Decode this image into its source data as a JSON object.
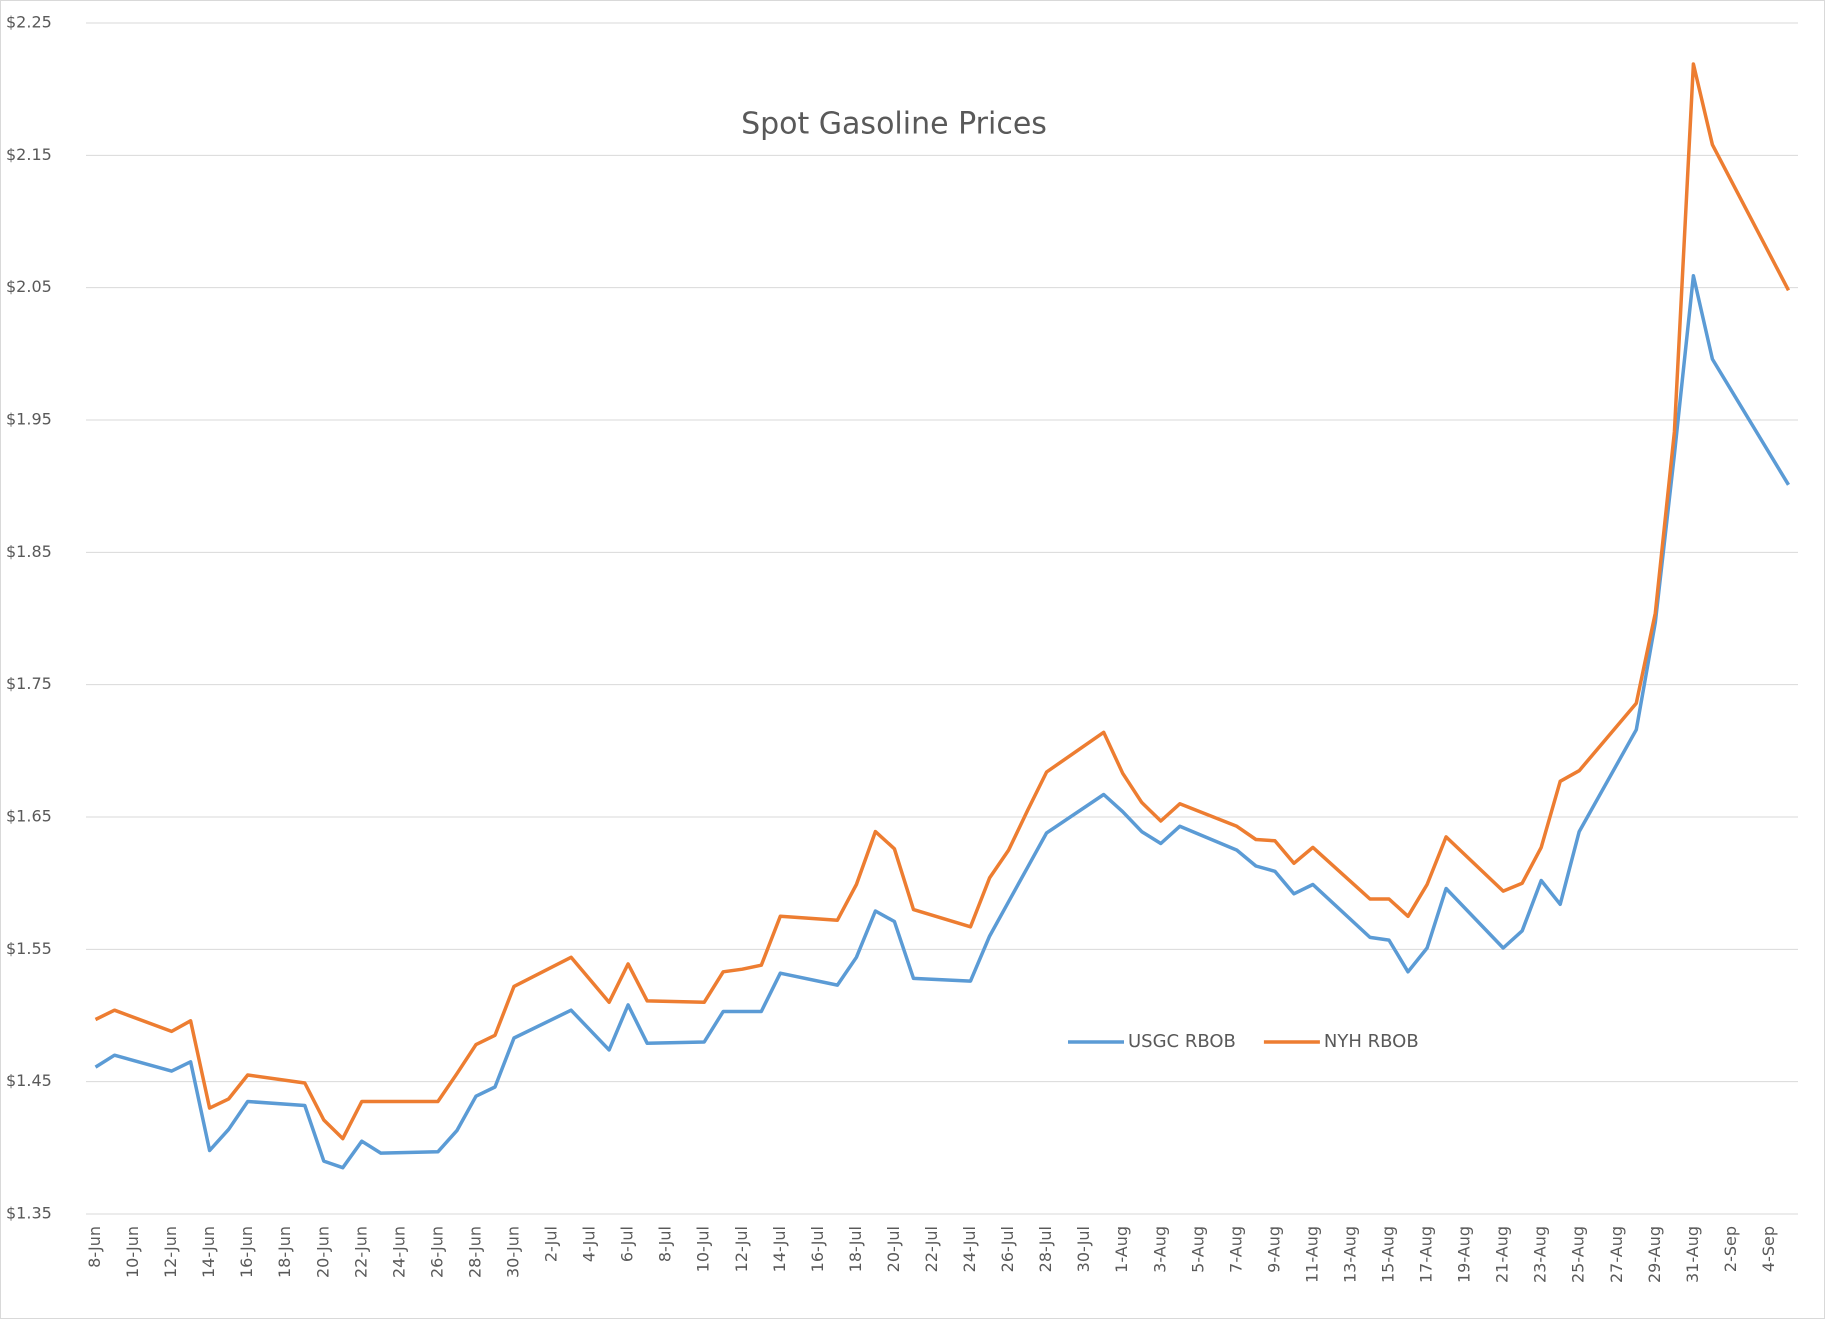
{
  "chart_data": {
    "type": "line",
    "title": "Spot Gasoline Prices",
    "x": [
      "8-Jun",
      "9-Jun",
      "12-Jun",
      "13-Jun",
      "14-Jun",
      "15-Jun",
      "16-Jun",
      "19-Jun",
      "20-Jun",
      "21-Jun",
      "22-Jun",
      "23-Jun",
      "26-Jun",
      "27-Jun",
      "28-Jun",
      "29-Jun",
      "30-Jun",
      "3-Jul",
      "5-Jul",
      "6-Jul",
      "7-Jul",
      "10-Jul",
      "11-Jul",
      "12-Jul",
      "13-Jul",
      "14-Jul",
      "17-Jul",
      "18-Jul",
      "19-Jul",
      "20-Jul",
      "21-Jul",
      "24-Jul",
      "25-Jul",
      "26-Jul",
      "27-Jul",
      "28-Jul",
      "31-Jul",
      "1-Aug",
      "2-Aug",
      "3-Aug",
      "4-Aug",
      "7-Aug",
      "8-Aug",
      "9-Aug",
      "10-Aug",
      "11-Aug",
      "14-Aug",
      "15-Aug",
      "16-Aug",
      "17-Aug",
      "18-Aug",
      "21-Aug",
      "22-Aug",
      "23-Aug",
      "24-Aug",
      "25-Aug",
      "28-Aug",
      "29-Aug",
      "30-Aug",
      "31-Aug",
      "1-Sep",
      "5-Sep"
    ],
    "series": [
      {
        "name": "USGC RBOB",
        "color": "#5b9bd5",
        "values": [
          1.461,
          1.47,
          1.458,
          1.465,
          1.398,
          1.414,
          1.435,
          1.432,
          1.39,
          1.385,
          1.405,
          1.396,
          1.397,
          1.413,
          1.439,
          1.446,
          1.483,
          1.504,
          1.474,
          1.508,
          1.479,
          1.48,
          1.503,
          1.503,
          1.503,
          1.532,
          1.523,
          1.544,
          1.579,
          1.571,
          1.528,
          1.526,
          1.56,
          1.586,
          1.612,
          1.638,
          1.667,
          1.654,
          1.639,
          1.63,
          1.643,
          1.625,
          1.613,
          1.609,
          1.592,
          1.599,
          1.559,
          1.557,
          1.533,
          1.551,
          1.596,
          1.551,
          1.564,
          1.602,
          1.584,
          1.639,
          1.716,
          1.797,
          1.924,
          2.059,
          1.996,
          1.901
        ]
      },
      {
        "name": "NYH RBOB",
        "color": "#ed7d31",
        "values": [
          1.497,
          1.504,
          1.488,
          1.496,
          1.43,
          1.437,
          1.455,
          1.449,
          1.421,
          1.407,
          1.435,
          1.435,
          1.435,
          1.456,
          1.478,
          1.485,
          1.522,
          1.544,
          1.51,
          1.539,
          1.511,
          1.51,
          1.533,
          1.535,
          1.538,
          1.575,
          1.572,
          1.599,
          1.639,
          1.626,
          1.58,
          1.567,
          1.604,
          1.625,
          1.655,
          1.684,
          1.714,
          1.683,
          1.661,
          1.647,
          1.66,
          1.643,
          1.633,
          1.632,
          1.615,
          1.627,
          1.588,
          1.588,
          1.575,
          1.599,
          1.635,
          1.594,
          1.6,
          1.627,
          1.677,
          1.685,
          1.736,
          1.804,
          1.941,
          2.219,
          2.158,
          2.048
        ]
      }
    ],
    "xlim": [
      "8-Jun",
      "5-Sep"
    ],
    "xticks": [
      "8-Jun",
      "10-Jun",
      "12-Jun",
      "14-Jun",
      "16-Jun",
      "18-Jun",
      "20-Jun",
      "22-Jun",
      "24-Jun",
      "26-Jun",
      "28-Jun",
      "30-Jun",
      "2-Jul",
      "4-Jul",
      "6-Jul",
      "8-Jul",
      "10-Jul",
      "12-Jul",
      "14-Jul",
      "16-Jul",
      "18-Jul",
      "20-Jul",
      "22-Jul",
      "24-Jul",
      "26-Jul",
      "28-Jul",
      "30-Jul",
      "1-Aug",
      "3-Aug",
      "5-Aug",
      "7-Aug",
      "9-Aug",
      "11-Aug",
      "13-Aug",
      "15-Aug",
      "17-Aug",
      "19-Aug",
      "21-Aug",
      "23-Aug",
      "25-Aug",
      "27-Aug",
      "29-Aug",
      "31-Aug",
      "2-Sep",
      "4-Sep"
    ],
    "ylim": [
      1.35,
      2.25
    ],
    "yticks": [
      {
        "value": 1.35,
        "label": "$1.35"
      },
      {
        "value": 1.45,
        "label": "$1.45"
      },
      {
        "value": 1.55,
        "label": "$1.55"
      },
      {
        "value": 1.65,
        "label": "$1.65"
      },
      {
        "value": 1.75,
        "label": "$1.75"
      },
      {
        "value": 1.85,
        "label": "$1.85"
      },
      {
        "value": 1.95,
        "label": "$1.95"
      },
      {
        "value": 2.05,
        "label": "$2.05"
      },
      {
        "value": 2.15,
        "label": "$2.15"
      },
      {
        "value": 2.25,
        "label": "$2.25"
      }
    ],
    "grid": true,
    "legend": "center"
  }
}
